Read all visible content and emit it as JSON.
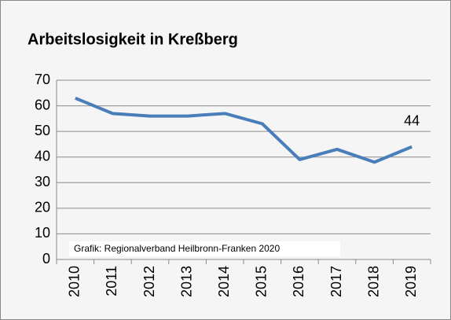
{
  "chart_data": {
    "type": "line",
    "title": "Arbeitslosigkeit in Kreßberg",
    "categories": [
      "2010",
      "2011",
      "2012",
      "2013",
      "2014",
      "2015",
      "2016",
      "2017",
      "2018",
      "2019"
    ],
    "series": [
      {
        "name": "Arbeitslosigkeit",
        "color": "#4a7ebb",
        "values": [
          63,
          57,
          56,
          56,
          57,
          53,
          39,
          43,
          38,
          44
        ]
      }
    ],
    "ylim": [
      0,
      70
    ],
    "yticks": [
      0,
      10,
      20,
      30,
      40,
      50,
      60,
      70
    ],
    "grid": true,
    "source": "Grafik: Regionalverband Heilbronn-Franken 2020"
  }
}
